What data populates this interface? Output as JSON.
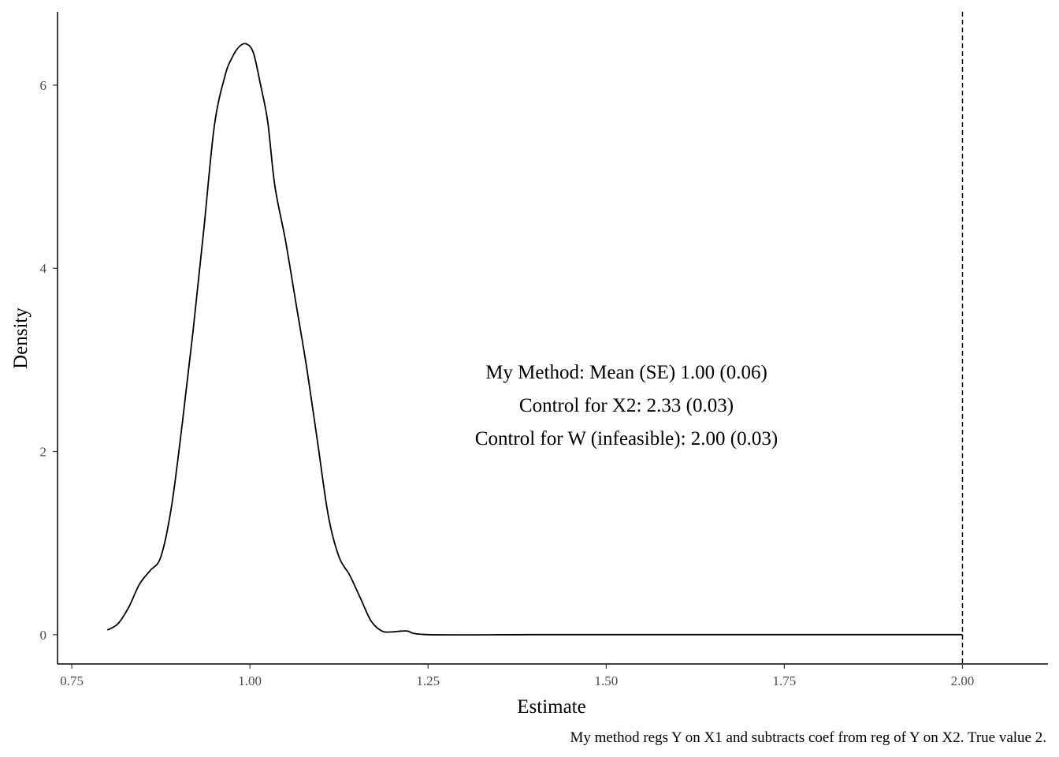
{
  "chart_data": {
    "type": "line",
    "title": "",
    "xlabel": "Estimate",
    "ylabel": "Density",
    "xlim": [
      0.73,
      2.12
    ],
    "ylim": [
      -0.32,
      6.8
    ],
    "x_ticks": [
      0.75,
      1.0,
      1.25,
      1.5,
      1.75,
      2.0
    ],
    "x_tick_labels": [
      "0.75",
      "1.00",
      "1.25",
      "1.50",
      "1.75",
      "2.00"
    ],
    "y_ticks": [
      0,
      2,
      4,
      6
    ],
    "y_tick_labels": [
      "0",
      "2",
      "4",
      "6"
    ],
    "grid": false,
    "series": [
      {
        "x": [
          0.8,
          0.815,
          0.83,
          0.845,
          0.86,
          0.875,
          0.89,
          0.905,
          0.92,
          0.935,
          0.95,
          0.965,
          0.975,
          0.985,
          0.995,
          1.005,
          1.015,
          1.025,
          1.035,
          1.05,
          1.065,
          1.08,
          1.095,
          1.11,
          1.125,
          1.14,
          1.155,
          1.17,
          1.185,
          1.2,
          1.22,
          1.25,
          1.4,
          1.6,
          1.8,
          2.0
        ],
        "y": [
          0.05,
          0.12,
          0.3,
          0.55,
          0.7,
          0.85,
          1.4,
          2.3,
          3.3,
          4.4,
          5.55,
          6.1,
          6.3,
          6.42,
          6.45,
          6.35,
          6.0,
          5.6,
          4.9,
          4.3,
          3.6,
          2.9,
          2.1,
          1.3,
          0.85,
          0.65,
          0.4,
          0.15,
          0.04,
          0.03,
          0.04,
          0.0,
          0.0,
          0.0,
          0.0,
          0.0
        ]
      }
    ],
    "reference_line": {
      "x": 2.0,
      "style": "dashed"
    },
    "annotations": [
      "My Method: Mean (SE) 1.00 (0.06)",
      "Control for X2: 2.33 (0.03)",
      "Control for W (infeasible): 2.00 (0.03)"
    ],
    "caption": "My method regs Y on X1 and subtracts coef from reg of Y on X2. True value 2."
  }
}
